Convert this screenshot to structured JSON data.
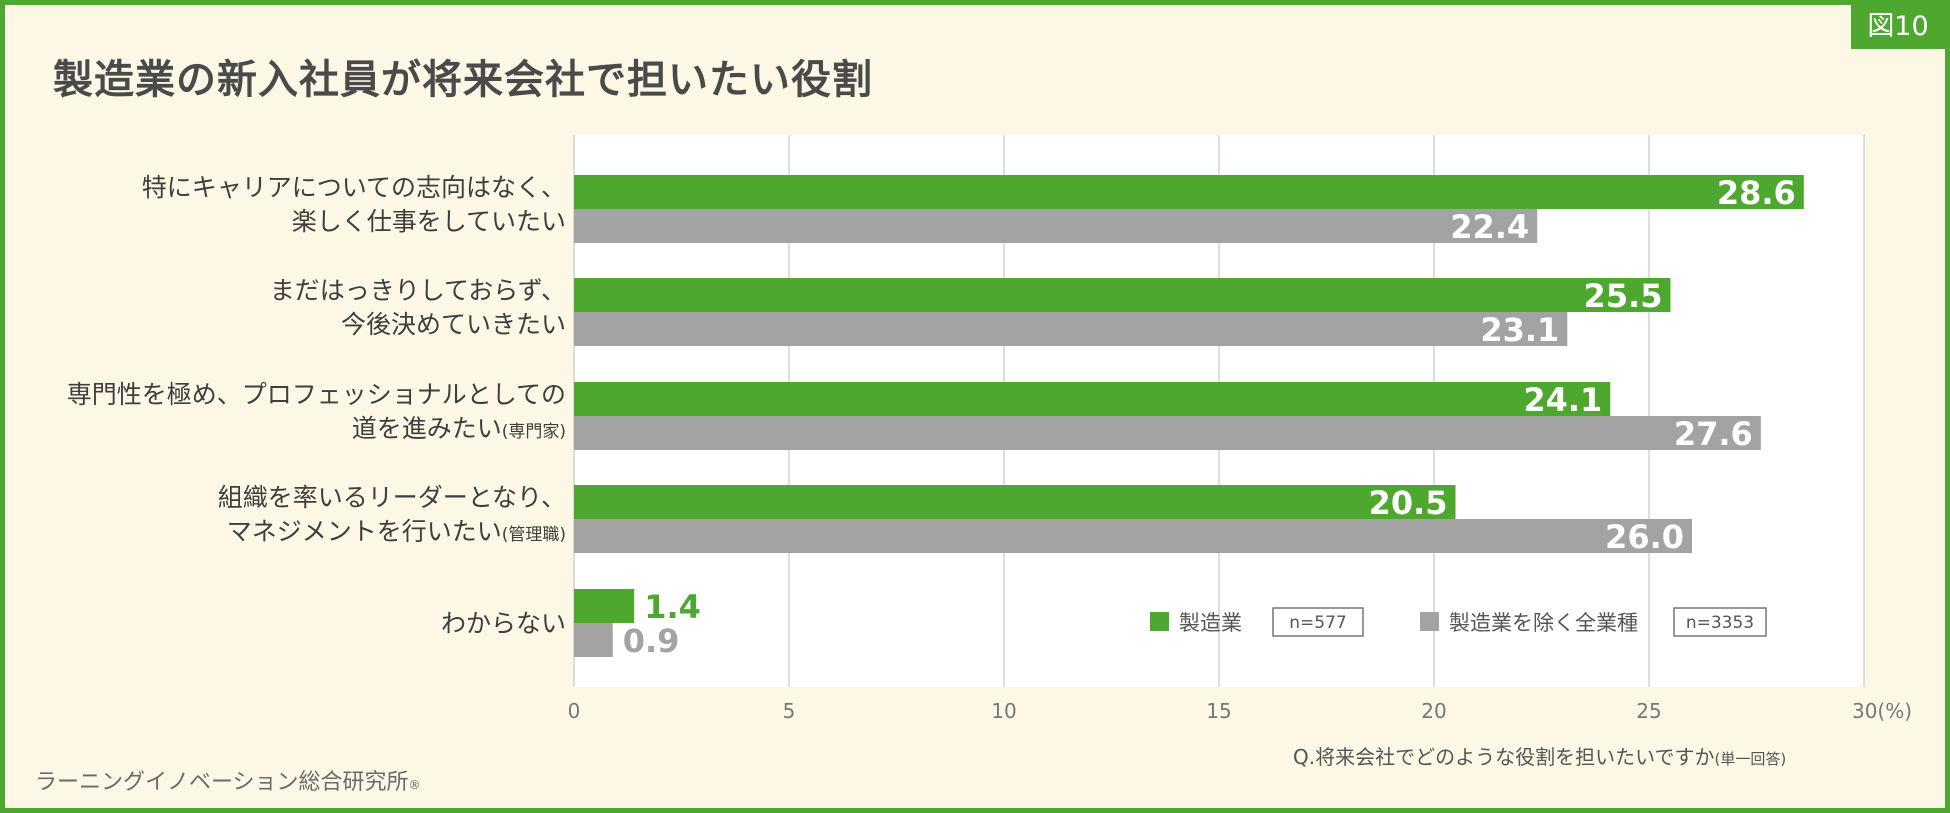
{
  "figure_tag": "図10",
  "title": "製造業の新入社員が将来会社で担いたい役割",
  "question": "Q.将来会社でどのような役割を担いたいですか",
  "question_note": "(単一回答)",
  "source": "ラーニングイノベーション総合研究所",
  "source_mark": "®",
  "colors": {
    "accent": "#4ea72e",
    "gray": "#a3a3a3",
    "background": "#fdf7e6",
    "plot_bg": "#ffffff"
  },
  "chart_data": {
    "type": "bar",
    "orientation": "horizontal",
    "categories": [
      {
        "lines": [
          "特にキャリアについての志向はなく、",
          "楽しく仕事をしていたい"
        ],
        "note": ""
      },
      {
        "lines": [
          "まだはっきりしておらず、",
          "今後決めていきたい"
        ],
        "note": ""
      },
      {
        "lines": [
          "専門性を極め、プロフェッショナルとしての",
          "道を進みたい"
        ],
        "note": "(専門家)"
      },
      {
        "lines": [
          "組織を率いるリーダーとなり、",
          "マネジメントを行いたい"
        ],
        "note": "(管理職)"
      },
      {
        "lines": [
          "わからない"
        ],
        "note": ""
      }
    ],
    "series": [
      {
        "name": "製造業",
        "n": "n=577",
        "color": "#4ea72e",
        "values": [
          28.6,
          25.5,
          24.1,
          20.5,
          1.4
        ],
        "labels": [
          "28.6",
          "25.5",
          "24.1",
          "20.5",
          "1.4"
        ]
      },
      {
        "name": "製造業を除く全業種",
        "n": "n=3353",
        "color": "#a3a3a3",
        "values": [
          22.4,
          23.1,
          27.6,
          26.0,
          0.9
        ],
        "labels": [
          "22.4",
          "23.1",
          "27.6",
          "26.0",
          "0.9"
        ]
      }
    ],
    "x_ticks": [
      "0",
      "5",
      "10",
      "15",
      "20",
      "25",
      "30"
    ],
    "x_unit": "(%)",
    "xlim": [
      0,
      30
    ],
    "grid": true,
    "legend": "bottom-right inside plot"
  }
}
